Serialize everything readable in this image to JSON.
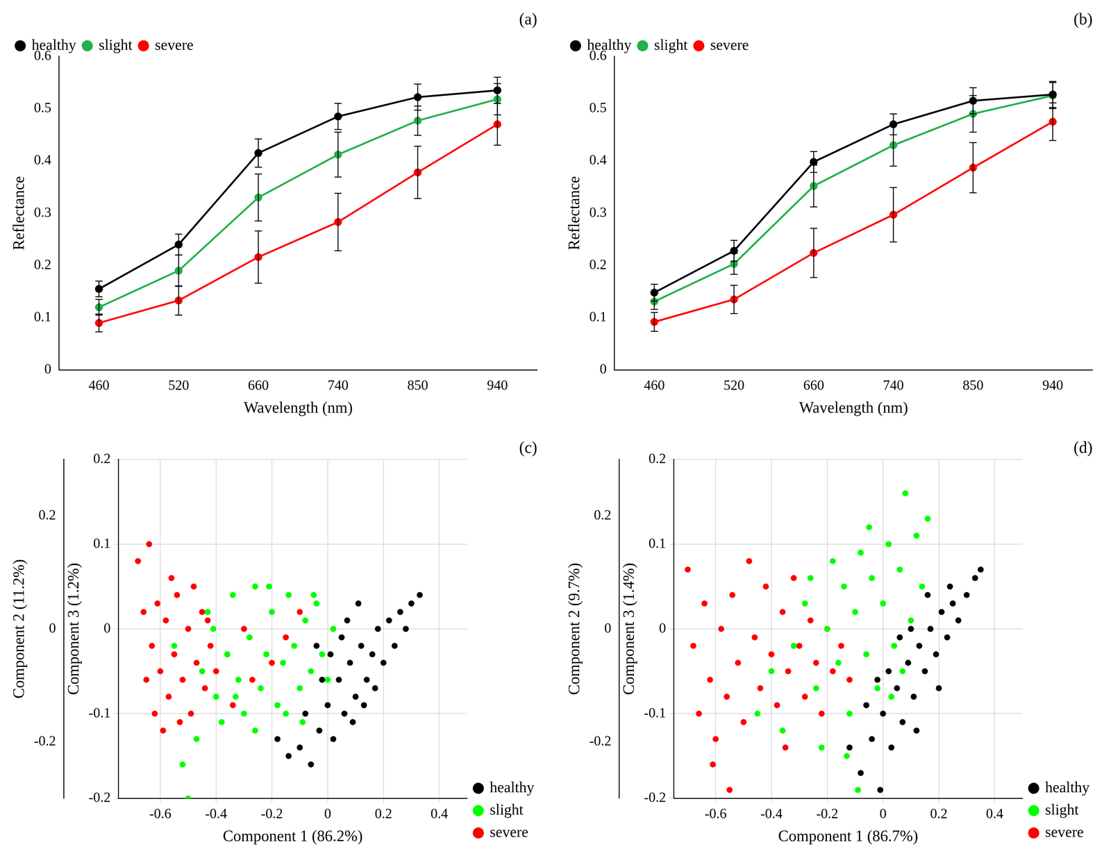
{
  "chart_data": [
    {
      "type": "line",
      "title": "(a)",
      "x_label": "Wavelength (nm)",
      "y_label": "Reflectance",
      "categories": [
        "460",
        "520",
        "660",
        "740",
        "850",
        "940"
      ],
      "ylim": [
        0,
        0.6
      ],
      "yticks": [
        0,
        0.1,
        0.2,
        0.3,
        0.4,
        0.5,
        0.6
      ],
      "grid": false,
      "legend": "upper left",
      "series": [
        {
          "name": "healthy",
          "color": "#000000",
          "marker": "circle",
          "line_style": "solid",
          "values": [
            0.155,
            0.24,
            0.415,
            0.485,
            0.522,
            0.535
          ],
          "errors": [
            0.015,
            0.02,
            0.027,
            0.025,
            0.025,
            0.025
          ]
        },
        {
          "name": "slight",
          "color": "#22b14c",
          "marker": "circle",
          "line_style": "solid",
          "values": [
            0.12,
            0.19,
            0.33,
            0.412,
            0.477,
            0.518
          ],
          "errors": [
            0.015,
            0.03,
            0.045,
            0.043,
            0.028,
            0.03
          ]
        },
        {
          "name": "severe",
          "color": "#ff0000",
          "marker": "circle",
          "line_style": "solid",
          "values": [
            0.09,
            0.133,
            0.216,
            0.283,
            0.378,
            0.47
          ],
          "errors": [
            0.017,
            0.028,
            0.05,
            0.055,
            0.05,
            0.04
          ]
        }
      ]
    },
    {
      "type": "line",
      "title": "(b)",
      "x_label": "Wavelength (nm)",
      "y_label": "Reflectance",
      "categories": [
        "460",
        "520",
        "660",
        "740",
        "850",
        "940"
      ],
      "ylim": [
        0,
        0.6
      ],
      "yticks": [
        0,
        0.1,
        0.2,
        0.3,
        0.4,
        0.5,
        0.6
      ],
      "grid": false,
      "legend": "upper left",
      "series": [
        {
          "name": "healthy",
          "color": "#000000",
          "marker": "circle",
          "line_style": "solid",
          "values": [
            0.148,
            0.228,
            0.398,
            0.47,
            0.515,
            0.527
          ],
          "errors": [
            0.016,
            0.02,
            0.02,
            0.02,
            0.025,
            0.025
          ]
        },
        {
          "name": "slight",
          "color": "#22b14c",
          "marker": "circle",
          "line_style": "solid",
          "values": [
            0.131,
            0.203,
            0.352,
            0.43,
            0.49,
            0.525
          ],
          "errors": [
            0.015,
            0.02,
            0.04,
            0.04,
            0.035,
            0.025
          ]
        },
        {
          "name": "severe",
          "color": "#ff0000",
          "marker": "circle",
          "line_style": "solid",
          "values": [
            0.092,
            0.135,
            0.224,
            0.297,
            0.387,
            0.475
          ],
          "errors": [
            0.018,
            0.027,
            0.047,
            0.052,
            0.048,
            0.036
          ]
        }
      ]
    },
    {
      "type": "scatter",
      "title": "(c)",
      "x_label": "Component 1 (86.2%)",
      "y_label": "Component 3 (1.2%)",
      "z_label": "Component 2 (11.2%)",
      "xlim": [
        -0.75,
        0.5
      ],
      "xticks": [
        -0.6,
        -0.4,
        -0.2,
        0,
        0.2,
        0.4
      ],
      "ylim": [
        -0.2,
        0.2
      ],
      "yticks": [
        -0.2,
        -0.1,
        0,
        0.1,
        0.2
      ],
      "zlim": [
        -0.3,
        0.3
      ],
      "zticks": [
        -0.2,
        0,
        0.2
      ],
      "grid": true,
      "legend": "lower right",
      "series": [
        {
          "name": "healthy",
          "color": "#000000",
          "marker": "circle",
          "values": [
            [
              -0.14,
              -0.15
            ],
            [
              -0.1,
              -0.14
            ],
            [
              -0.06,
              -0.16
            ],
            [
              -0.03,
              -0.12
            ],
            [
              0.0,
              -0.09
            ],
            [
              0.02,
              -0.13
            ],
            [
              0.04,
              -0.06
            ],
            [
              0.06,
              -0.1
            ],
            [
              0.08,
              -0.04
            ],
            [
              0.1,
              -0.08
            ],
            [
              0.12,
              -0.02
            ],
            [
              0.14,
              -0.06
            ],
            [
              0.16,
              -0.03
            ],
            [
              0.18,
              0.0
            ],
            [
              0.2,
              -0.04
            ],
            [
              0.22,
              0.01
            ],
            [
              0.24,
              -0.02
            ],
            [
              0.26,
              0.02
            ],
            [
              0.28,
              0.0
            ],
            [
              0.3,
              0.03
            ],
            [
              0.33,
              0.04
            ],
            [
              0.01,
              -0.03
            ],
            [
              0.05,
              -0.01
            ],
            [
              0.09,
              -0.11
            ],
            [
              0.13,
              -0.09
            ],
            [
              -0.08,
              -0.1
            ],
            [
              -0.02,
              -0.06
            ],
            [
              0.07,
              0.01
            ],
            [
              0.17,
              -0.07
            ],
            [
              0.11,
              0.03
            ],
            [
              -0.18,
              -0.13
            ],
            [
              -0.04,
              -0.02
            ]
          ]
        },
        {
          "name": "slight",
          "color": "#00ff00",
          "marker": "circle",
          "values": [
            [
              -0.55,
              -0.02
            ],
            [
              -0.52,
              -0.16
            ],
            [
              -0.5,
              -0.2
            ],
            [
              -0.47,
              -0.13
            ],
            [
              -0.45,
              -0.05
            ],
            [
              -0.43,
              0.02
            ],
            [
              -0.4,
              -0.08
            ],
            [
              -0.38,
              -0.11
            ],
            [
              -0.36,
              -0.03
            ],
            [
              -0.34,
              0.04
            ],
            [
              -0.32,
              -0.06
            ],
            [
              -0.3,
              -0.1
            ],
            [
              -0.28,
              -0.01
            ],
            [
              -0.26,
              0.05
            ],
            [
              -0.24,
              -0.07
            ],
            [
              -0.22,
              -0.03
            ],
            [
              -0.2,
              0.02
            ],
            [
              -0.18,
              -0.09
            ],
            [
              -0.16,
              -0.04
            ],
            [
              -0.14,
              0.04
            ],
            [
              -0.12,
              -0.02
            ],
            [
              -0.1,
              -0.07
            ],
            [
              -0.08,
              0.01
            ],
            [
              -0.06,
              -0.05
            ],
            [
              -0.04,
              0.03
            ],
            [
              -0.02,
              -0.03
            ],
            [
              0.0,
              -0.06
            ],
            [
              0.02,
              0.0
            ],
            [
              -0.26,
              -0.12
            ],
            [
              -0.33,
              -0.08
            ],
            [
              -0.15,
              -0.1
            ],
            [
              -0.09,
              -0.11
            ],
            [
              -0.41,
              0.0
            ],
            [
              -0.21,
              0.05
            ],
            [
              -0.05,
              0.04
            ]
          ]
        },
        {
          "name": "severe",
          "color": "#ff0000",
          "marker": "circle",
          "values": [
            [
              -0.68,
              0.08
            ],
            [
              -0.64,
              0.1
            ],
            [
              -0.66,
              0.02
            ],
            [
              -0.63,
              -0.02
            ],
            [
              -0.61,
              0.03
            ],
            [
              -0.6,
              -0.05
            ],
            [
              -0.58,
              0.01
            ],
            [
              -0.57,
              -0.08
            ],
            [
              -0.55,
              -0.03
            ],
            [
              -0.54,
              0.04
            ],
            [
              -0.52,
              -0.06
            ],
            [
              -0.5,
              0.0
            ],
            [
              -0.49,
              -0.1
            ],
            [
              -0.47,
              -0.04
            ],
            [
              -0.45,
              0.02
            ],
            [
              -0.44,
              -0.07
            ],
            [
              -0.42,
              -0.02
            ],
            [
              -0.4,
              -0.05
            ],
            [
              -0.65,
              -0.06
            ],
            [
              -0.62,
              -0.1
            ],
            [
              -0.59,
              -0.12
            ],
            [
              -0.56,
              0.06
            ],
            [
              -0.53,
              -0.11
            ],
            [
              -0.36,
              -0.03
            ],
            [
              -0.3,
              0.0
            ],
            [
              -0.27,
              -0.06
            ],
            [
              -0.2,
              -0.04
            ],
            [
              -0.15,
              -0.01
            ],
            [
              -0.1,
              0.02
            ],
            [
              -0.34,
              -0.09
            ],
            [
              -0.48,
              0.05
            ],
            [
              -0.43,
              0.01
            ]
          ]
        }
      ]
    },
    {
      "type": "scatter",
      "title": "(d)",
      "x_label": "Component 1 (86.7%)",
      "y_label": "Component 3 (1.4%)",
      "z_label": "Component 2 (9.7%)",
      "xlim": [
        -0.75,
        0.5
      ],
      "xticks": [
        -0.6,
        -0.4,
        -0.2,
        0,
        0.2,
        0.4
      ],
      "ylim": [
        -0.2,
        0.2
      ],
      "yticks": [
        -0.2,
        -0.1,
        0,
        0.1,
        0.2
      ],
      "zlim": [
        -0.3,
        0.3
      ],
      "zticks": [
        -0.2,
        0,
        0.2
      ],
      "grid": true,
      "legend": "lower right",
      "series": [
        {
          "name": "healthy",
          "color": "#000000",
          "marker": "circle",
          "values": [
            [
              -0.12,
              -0.14
            ],
            [
              -0.08,
              -0.17
            ],
            [
              -0.04,
              -0.13
            ],
            [
              -0.01,
              -0.19
            ],
            [
              0.0,
              -0.1
            ],
            [
              0.03,
              -0.14
            ],
            [
              0.05,
              -0.07
            ],
            [
              0.07,
              -0.11
            ],
            [
              0.09,
              -0.04
            ],
            [
              0.11,
              -0.08
            ],
            [
              0.13,
              -0.02
            ],
            [
              0.15,
              -0.05
            ],
            [
              0.17,
              0.0
            ],
            [
              0.19,
              -0.03
            ],
            [
              0.21,
              0.02
            ],
            [
              0.23,
              -0.01
            ],
            [
              0.25,
              0.03
            ],
            [
              0.27,
              0.01
            ],
            [
              0.3,
              0.04
            ],
            [
              0.33,
              0.06
            ],
            [
              0.35,
              0.07
            ],
            [
              0.02,
              -0.05
            ],
            [
              0.06,
              -0.01
            ],
            [
              -0.06,
              -0.09
            ],
            [
              0.12,
              -0.12
            ],
            [
              0.16,
              0.04
            ],
            [
              0.1,
              0.0
            ],
            [
              -0.02,
              -0.06
            ],
            [
              0.2,
              -0.07
            ],
            [
              0.24,
              0.05
            ]
          ]
        },
        {
          "name": "slight",
          "color": "#00ff00",
          "marker": "circle",
          "values": [
            [
              -0.45,
              -0.1
            ],
            [
              -0.4,
              -0.05
            ],
            [
              -0.36,
              -0.12
            ],
            [
              -0.32,
              -0.02
            ],
            [
              -0.28,
              0.03
            ],
            [
              -0.24,
              -0.07
            ],
            [
              -0.2,
              0.0
            ],
            [
              -0.18,
              0.08
            ],
            [
              -0.16,
              -0.04
            ],
            [
              -0.14,
              0.05
            ],
            [
              -0.12,
              -0.1
            ],
            [
              -0.1,
              0.02
            ],
            [
              -0.08,
              0.09
            ],
            [
              -0.06,
              -0.03
            ],
            [
              -0.04,
              0.06
            ],
            [
              -0.02,
              -0.07
            ],
            [
              0.0,
              0.03
            ],
            [
              0.02,
              0.1
            ],
            [
              0.04,
              -0.02
            ],
            [
              0.06,
              0.07
            ],
            [
              0.08,
              0.16
            ],
            [
              0.1,
              0.01
            ],
            [
              0.12,
              0.11
            ],
            [
              0.14,
              0.05
            ],
            [
              -0.22,
              -0.14
            ],
            [
              -0.09,
              -0.19
            ],
            [
              -0.05,
              0.12
            ],
            [
              0.03,
              -0.08
            ],
            [
              -0.26,
              0.06
            ],
            [
              0.16,
              0.13
            ],
            [
              -0.13,
              -0.15
            ],
            [
              0.07,
              -0.05
            ]
          ]
        },
        {
          "name": "severe",
          "color": "#ff0000",
          "marker": "circle",
          "values": [
            [
              -0.7,
              0.07
            ],
            [
              -0.68,
              -0.02
            ],
            [
              -0.66,
              -0.1
            ],
            [
              -0.64,
              0.03
            ],
            [
              -0.62,
              -0.06
            ],
            [
              -0.6,
              -0.13
            ],
            [
              -0.58,
              0.0
            ],
            [
              -0.56,
              -0.08
            ],
            [
              -0.54,
              0.04
            ],
            [
              -0.52,
              -0.04
            ],
            [
              -0.5,
              -0.11
            ],
            [
              -0.48,
              0.08
            ],
            [
              -0.46,
              -0.01
            ],
            [
              -0.44,
              -0.07
            ],
            [
              -0.42,
              0.05
            ],
            [
              -0.4,
              -0.03
            ],
            [
              -0.38,
              -0.09
            ],
            [
              -0.36,
              0.02
            ],
            [
              -0.34,
              -0.05
            ],
            [
              -0.32,
              0.06
            ],
            [
              -0.3,
              -0.02
            ],
            [
              -0.28,
              -0.08
            ],
            [
              -0.26,
              0.01
            ],
            [
              -0.24,
              -0.04
            ],
            [
              -0.22,
              -0.1
            ],
            [
              -0.2,
              0.0
            ],
            [
              -0.18,
              -0.05
            ],
            [
              -0.15,
              -0.02
            ],
            [
              -0.55,
              -0.19
            ],
            [
              -0.61,
              -0.16
            ],
            [
              -0.12,
              -0.06
            ],
            [
              -0.35,
              -0.14
            ]
          ]
        }
      ]
    }
  ]
}
